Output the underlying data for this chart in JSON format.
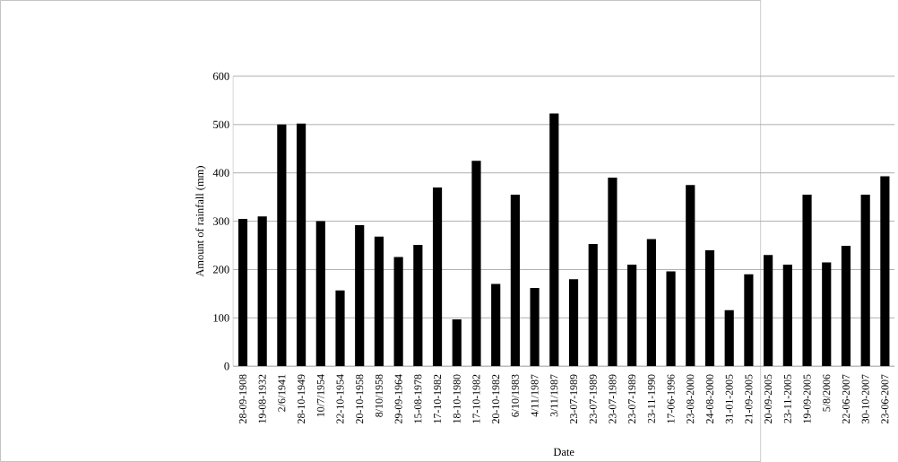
{
  "chart_data": {
    "type": "bar",
    "xlabel": "Date",
    "ylabel": "Amount of rainfall (mm)",
    "categories": [
      "28-09-1908",
      "19-08-1932",
      "2/6/1941",
      "28-10-1949",
      "10/7/1954",
      "22-10-1954",
      "20-10-1958",
      "8/10/1958",
      "29-09-1964",
      "15-08-1978",
      "17-10-1982",
      "18-10-1980",
      "17-10-1982",
      "20-10-1982",
      "6/10/1983",
      "4/11/1987",
      "3/11/1987",
      "23-07-1989",
      "23-07-1989",
      "23-07-1989",
      "23-07-1989",
      "23-11-1990",
      "17-06-1996",
      "23-08-2000",
      "24-08-2000",
      "31-01-2005",
      "21-09-2005",
      "20-09-2005",
      "23-11-2005",
      "19-09-2005",
      "5/8/2006",
      "22-06-2007",
      "30-10-2007",
      "23-06-2007"
    ],
    "values": [
      305,
      310,
      500,
      502,
      300,
      157,
      292,
      268,
      226,
      251,
      370,
      97,
      425,
      170,
      355,
      162,
      523,
      180,
      253,
      390,
      210,
      263,
      196,
      375,
      240,
      116,
      190,
      230,
      210,
      355,
      215,
      249,
      355,
      393
    ],
    "color": "#000000",
    "ylim": [
      0,
      600
    ],
    "yticks": [
      0,
      100,
      200,
      300,
      400,
      500,
      600
    ],
    "grid": "y"
  }
}
